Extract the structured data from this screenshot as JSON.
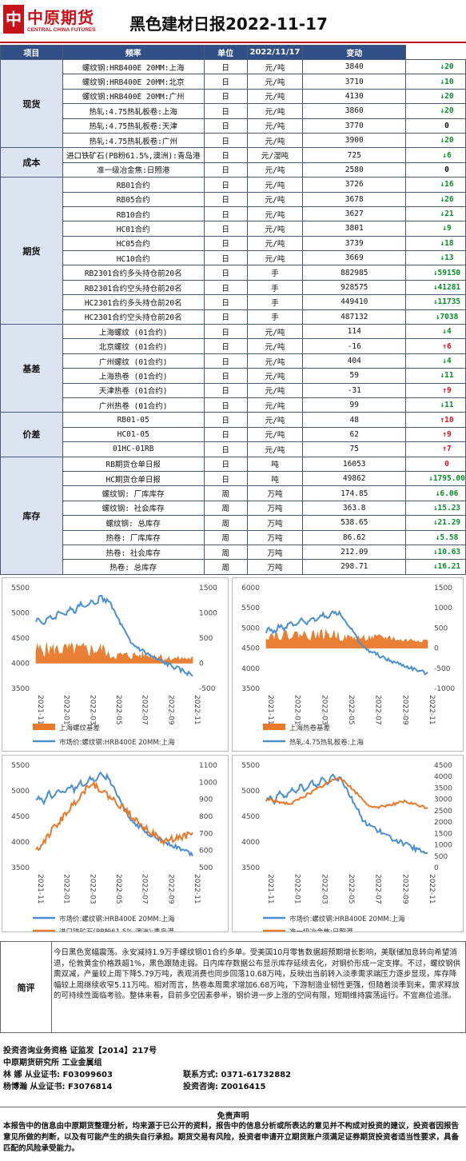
{
  "header": {
    "logo_cn": "中原期货",
    "logo_en": "CENTRAL CHINA FUTURES",
    "title": "黑色建材日报2022-11-17"
  },
  "table": {
    "headers": [
      "项目",
      "频率",
      "单位",
      "2022/11/17",
      "变动"
    ],
    "groups": [
      {
        "name": "现货",
        "rows": [
          {
            "item": "螺纹钢:HRB400E 20MM:上海",
            "freq": "日",
            "unit": "元/吨",
            "value": "3840",
            "change": "↓20",
            "dir": "down"
          },
          {
            "item": "螺纹钢:HRB400E 20MM:北京",
            "freq": "日",
            "unit": "元/吨",
            "value": "3710",
            "change": "↓10",
            "dir": "down"
          },
          {
            "item": "螺纹钢:HRB400E 20MM:广州",
            "freq": "日",
            "unit": "元/吨",
            "value": "4130",
            "change": "↓20",
            "dir": "down"
          },
          {
            "item": "热轧:4.75热轧板卷:上海",
            "freq": "日",
            "unit": "元/吨",
            "value": "3860",
            "change": "↓20",
            "dir": "down"
          },
          {
            "item": "热轧:4.75热轧板卷:天津",
            "freq": "日",
            "unit": "元/吨",
            "value": "3770",
            "change": "0",
            "dir": "flat"
          },
          {
            "item": "热轧:4.75热轧板卷:广州",
            "freq": "日",
            "unit": "元/吨",
            "value": "3900",
            "change": "↓20",
            "dir": "down"
          }
        ]
      },
      {
        "name": "成本",
        "rows": [
          {
            "item": "进口铁矿石(PB粉61.5%,澳洲):青岛港",
            "freq": "日",
            "unit": "元/湿吨",
            "value": "725",
            "change": "↓6",
            "dir": "down"
          },
          {
            "item": "准一级冶金焦:日照港",
            "freq": "日",
            "unit": "元/吨",
            "value": "2580",
            "change": "0",
            "dir": "flat"
          }
        ]
      },
      {
        "name": "期货",
        "rows": [
          {
            "item": "RB01合约",
            "freq": "日",
            "unit": "元/吨",
            "value": "3726",
            "change": "↓16",
            "dir": "down"
          },
          {
            "item": "RB05合约",
            "freq": "日",
            "unit": "元/吨",
            "value": "3678",
            "change": "↓26",
            "dir": "down"
          },
          {
            "item": "RB10合约",
            "freq": "日",
            "unit": "元/吨",
            "value": "3627",
            "change": "↓21",
            "dir": "down"
          },
          {
            "item": "HC01合约",
            "freq": "日",
            "unit": "元/吨",
            "value": "3801",
            "change": "↓9",
            "dir": "down"
          },
          {
            "item": "HC05合约",
            "freq": "日",
            "unit": "元/吨",
            "value": "3739",
            "change": "↓18",
            "dir": "down"
          },
          {
            "item": "HC10合约",
            "freq": "日",
            "unit": "元/吨",
            "value": "3669",
            "change": "↓13",
            "dir": "down"
          },
          {
            "item": "RB2301合约多头持仓前20名",
            "freq": "日",
            "unit": "手",
            "value": "882985",
            "change": "↓59150",
            "dir": "down"
          },
          {
            "item": "RB2301合约空头持仓前20名",
            "freq": "日",
            "unit": "手",
            "value": "928575",
            "change": "↓41281",
            "dir": "down"
          },
          {
            "item": "HC2301合约多头持仓前20名",
            "freq": "日",
            "unit": "手",
            "value": "449410",
            "change": "↓11735",
            "dir": "down"
          },
          {
            "item": "HC2301合约空头持仓前20名",
            "freq": "日",
            "unit": "手",
            "value": "487132",
            "change": "↓7038",
            "dir": "down"
          }
        ]
      },
      {
        "name": "基差",
        "rows": [
          {
            "item": "上海螺纹 (01合约)",
            "freq": "日",
            "unit": "元/吨",
            "value": "114",
            "change": "↓4",
            "dir": "down"
          },
          {
            "item": "北京螺纹 (01合约)",
            "freq": "日",
            "unit": "元/吨",
            "value": "-16",
            "change": "↑6",
            "dir": "up"
          },
          {
            "item": "广州螺纹 (01合约)",
            "freq": "日",
            "unit": "元/吨",
            "value": "404",
            "change": "↓4",
            "dir": "down"
          },
          {
            "item": "上海热卷 (01合约)",
            "freq": "日",
            "unit": "元/吨",
            "value": "59",
            "change": "↓11",
            "dir": "down"
          },
          {
            "item": "天津热卷 (01合约)",
            "freq": "日",
            "unit": "元/吨",
            "value": "-31",
            "change": "↑9",
            "dir": "up"
          },
          {
            "item": "广州热卷 (01合约)",
            "freq": "日",
            "unit": "元/吨",
            "value": "99",
            "change": "↓11",
            "dir": "down"
          }
        ]
      },
      {
        "name": "价差",
        "rows": [
          {
            "item": "RB01-05",
            "freq": "日",
            "unit": "元/吨",
            "value": "48",
            "change": "↑10",
            "dir": "up"
          },
          {
            "item": "HC01-05",
            "freq": "日",
            "unit": "元/吨",
            "value": "62",
            "change": "↑9",
            "dir": "up"
          },
          {
            "item": "01HC-01RB",
            "freq": "日",
            "unit": "元/吨",
            "value": "75",
            "change": "↑7",
            "dir": "up"
          }
        ]
      },
      {
        "name": "库存",
        "rows": [
          {
            "item": "RB期货仓单日报",
            "freq": "日",
            "unit": "吨",
            "value": "16053",
            "change": "0",
            "dir": "flat-red"
          },
          {
            "item": "HC期货仓单日报",
            "freq": "日",
            "unit": "吨",
            "value": "49862",
            "change": "↓1795.00",
            "dir": "down"
          },
          {
            "item": "螺纹钢: 厂库库存",
            "freq": "周",
            "unit": "万吨",
            "value": "174.85",
            "change": "↓6.06",
            "dir": "down"
          },
          {
            "item": "螺纹钢: 社会库存",
            "freq": "周",
            "unit": "万吨",
            "value": "363.8",
            "change": "↓15.23",
            "dir": "down"
          },
          {
            "item": "螺纹钢: 总库存",
            "freq": "周",
            "unit": "万吨",
            "value": "538.65",
            "change": "↓21.29",
            "dir": "down"
          },
          {
            "item": "热卷: 厂库库存",
            "freq": "周",
            "unit": "万吨",
            "value": "86.62",
            "change": "↓5.58",
            "dir": "down"
          },
          {
            "item": "热卷: 社会库存",
            "freq": "周",
            "unit": "万吨",
            "value": "212.09",
            "change": "↓10.63",
            "dir": "down"
          },
          {
            "item": "热卷: 总库存",
            "freq": "周",
            "unit": "万吨",
            "value": "298.71",
            "change": "↓16.21",
            "dir": "down"
          }
        ]
      }
    ]
  },
  "chart_data": [
    {
      "type": "line",
      "x_ticks": [
        "2021-11",
        "2022-01",
        "2022-03",
        "2022-05",
        "2022-07",
        "2022-09",
        "2022-11"
      ],
      "yleft": [
        3500,
        4000,
        4500,
        5000,
        5500
      ],
      "yright": [
        -500,
        0,
        500,
        1000,
        1500
      ],
      "series": [
        {
          "name": "上海螺纹基差",
          "kind": "area",
          "axis": "right",
          "color": "#e8792a"
        },
        {
          "name": "市场价:螺纹钢:HRB400E 20MM:上海",
          "kind": "line",
          "axis": "left",
          "color": "#4a8fd0"
        }
      ]
    },
    {
      "type": "line",
      "x_ticks": [
        "2021-11",
        "2022-01",
        "2022-03",
        "2022-05",
        "2022-07",
        "2022-09",
        "2022-11"
      ],
      "yleft": [
        3500,
        4000,
        4500,
        5000,
        5500,
        6000
      ],
      "yright": [
        -1000,
        -500,
        0,
        500,
        1000,
        1500
      ],
      "series": [
        {
          "name": "上海热卷基差",
          "kind": "area",
          "axis": "right",
          "color": "#e8792a"
        },
        {
          "name": "热轧:4.75热轧板卷:上海",
          "kind": "line",
          "axis": "left",
          "color": "#4a8fd0"
        }
      ]
    },
    {
      "type": "line",
      "x_ticks": [
        "2021-11",
        "2022-01",
        "2022-03",
        "2022-05",
        "2022-07",
        "2022-09",
        "2022-11"
      ],
      "yleft": [
        3500,
        4000,
        4500,
        5000,
        5500
      ],
      "yright": [
        500,
        600,
        700,
        800,
        900,
        1000,
        1100
      ],
      "series": [
        {
          "name": "市场价:螺纹钢:HRB400E 20MM:上海",
          "kind": "line",
          "axis": "left",
          "color": "#4a8fd0"
        },
        {
          "name": "进口铁矿石(PB粉61.5%,澳洲):青岛港",
          "kind": "line",
          "axis": "right",
          "color": "#e8792a"
        }
      ]
    },
    {
      "type": "line",
      "x_ticks": [
        "2021-11",
        "2022-01",
        "2022-03",
        "2022-05",
        "2022-07",
        "2022-09",
        "2022-11"
      ],
      "yleft": [
        3500,
        4000,
        4500,
        5000,
        5500
      ],
      "yright": [
        0,
        500,
        1000,
        1500,
        2000,
        2500,
        3000,
        3500,
        4000,
        4500
      ],
      "series": [
        {
          "name": "市场价:螺纹钢:HRB400E 20MM:上海",
          "kind": "line",
          "axis": "left",
          "color": "#4a8fd0"
        },
        {
          "name": "准一级冶金焦:日照港",
          "kind": "line",
          "axis": "right",
          "color": "#e8792a"
        }
      ]
    }
  ],
  "review": {
    "label": "简评",
    "text": "今日黑色宽幅震荡。永安减持1.9万手螺纹钢01合约多单。受美国10月零售数据超预期增长影响，美联储加息转向希望消退，伦敦黄金价格跌超1%，黑色跟随走弱。日内库存数据公布显示库存延续去化，对钢价形成一定支撑。不过，螺纹钢供需双减，产量较上周下降5.79万吨，表观消费也同步回落10.68万吨，反映出当前转入淡季需求端压力逐步显现，库存降幅较上周继续收窄5.11万吨。相对而言，热卷本周需求增加6.68万吨，下游制造业韧性更强，但随着淡季到来，需求释放的可持续性面临考验。整体来看，目前多空因素参半，钢价进一步上涨的空间有限，短期维持震荡运行。不宜高位追涨。"
  },
  "info": {
    "line1": "投资咨询业务资格   证监发【2014】217号",
    "line2": "中原期货研究所   工业金属组",
    "line3a": "林  娜     从业证书: F03099603",
    "line3b": "联系方式:   0371-61732882",
    "line4a": "杨博瀚     从业证书: F3076814",
    "line4b": "投资咨询:  Z0016415"
  },
  "disclaimer": {
    "title": "免责声明",
    "text": "本报告中的信息由中原期货整理分析，均来源于已公开的资料，报告中的信息分析或所表达的意见并不构成对投资的建议，投资者因报告意见所做的判断，以及有可能产生的损失自行承担。期货交易有风险，投资者申请开立期货账户须满足证券期货投资者适当性要求，具备匹配的风险承受能力。"
  }
}
